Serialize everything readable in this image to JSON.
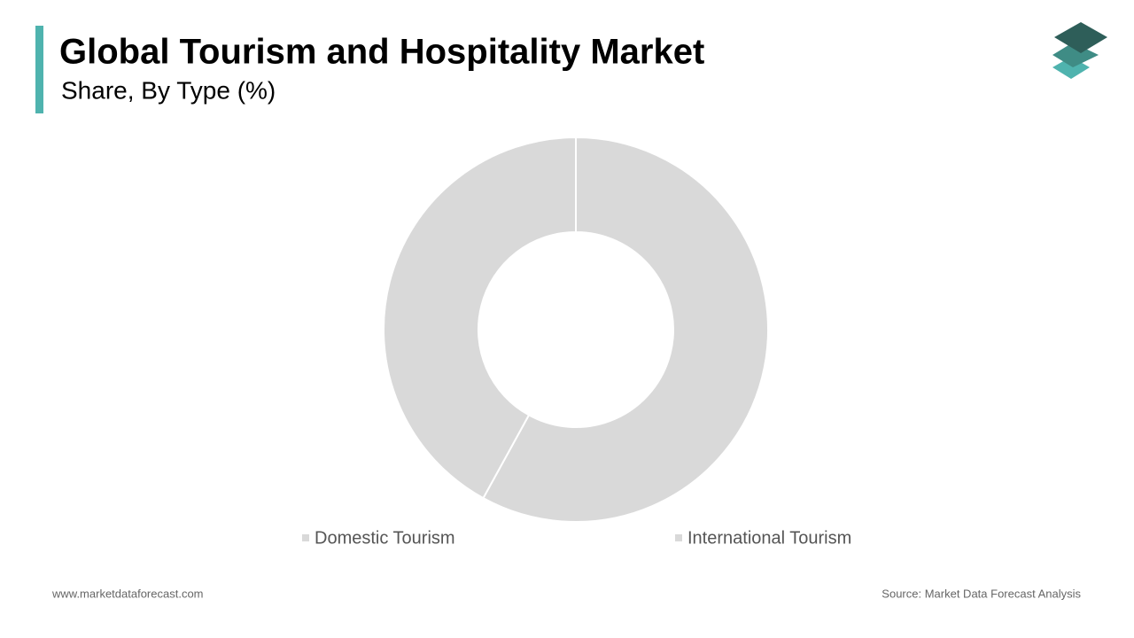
{
  "chart_data": {
    "type": "pie",
    "title": "Global Tourism and Hospitality Market",
    "subtitle": "Share, By Type (%)",
    "categories": [
      "Domestic Tourism",
      "International Tourism"
    ],
    "values": [
      58,
      42
    ],
    "colors": [
      "#d9d9d9",
      "#d9d9d9"
    ],
    "donut": true
  },
  "footer": {
    "website": "www.marketdataforecast.com",
    "source": "Source: Market Data Forecast Analysis"
  }
}
